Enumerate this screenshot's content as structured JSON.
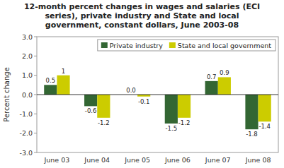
{
  "chart_data": {
    "type": "bar",
    "title": "12-month percent changes in wages and salaries (ECI\nseries), private industry and State and local\ngovernment, constant dollars, June 2003-08",
    "categories": [
      "June 03",
      "June 04",
      "June 05",
      "June 06",
      "June 07",
      "June 08"
    ],
    "series": [
      {
        "name": "Private industry",
        "color": "#336633",
        "values": [
          0.5,
          -0.6,
          0.0,
          -1.5,
          0.7,
          -1.8
        ],
        "value_labels": [
          "0.5",
          "-0.6",
          "0.0",
          "-1.5",
          "0.7",
          "-1.8"
        ]
      },
      {
        "name": "State and local government",
        "color": "#CCCC00",
        "values": [
          1.0,
          -1.2,
          -0.1,
          -1.2,
          0.9,
          -1.4
        ]
      }
    ],
    "ylabel": "Percent change",
    "ylim": [
      -3.0,
      3.0
    ],
    "yticks": [
      {
        "value": -3.0,
        "label": "-3.0"
      },
      {
        "value": -2.0,
        "label": "-2.0"
      },
      {
        "value": -1.0,
        "label": "-1.0"
      },
      {
        "value": 0.0,
        "label": "0.0"
      },
      {
        "value": 1.0,
        "label": "1.0"
      },
      {
        "value": 2.0,
        "label": "2.0"
      },
      {
        "value": 3.0,
        "label": "3.0"
      }
    ],
    "data_labels": true,
    "legend": "upper right"
  }
}
